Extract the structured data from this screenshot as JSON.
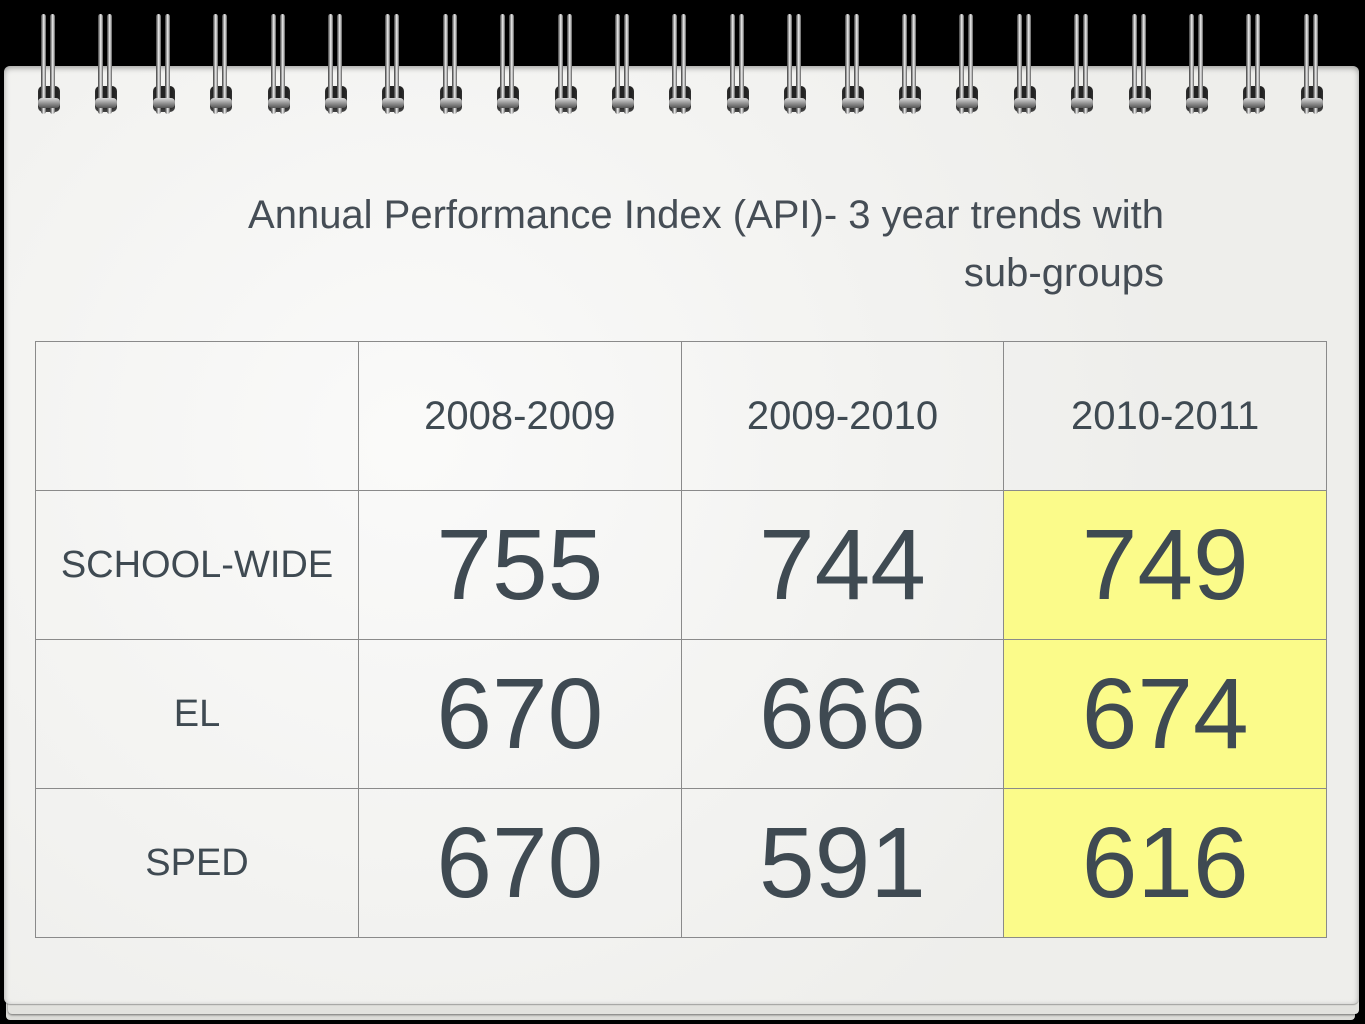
{
  "title": "Annual Performance Index (API)- 3 year trends with sub-groups",
  "table": {
    "columns": [
      "",
      "2008-2009",
      "2009-2010",
      "2010-2011"
    ],
    "rows": [
      {
        "label": "SCHOOL-WIDE",
        "values": [
          "755",
          "744",
          "749"
        ]
      },
      {
        "label": "EL",
        "values": [
          "670",
          "666",
          "674"
        ]
      },
      {
        "label": "SPED",
        "values": [
          "670",
          "591",
          "616"
        ]
      }
    ],
    "highlight_color": "#fbfb8a"
  },
  "notebook": {
    "ring_count": 23,
    "ring_color": "#c9c9c9",
    "page_color": "#f3f3f1"
  }
}
